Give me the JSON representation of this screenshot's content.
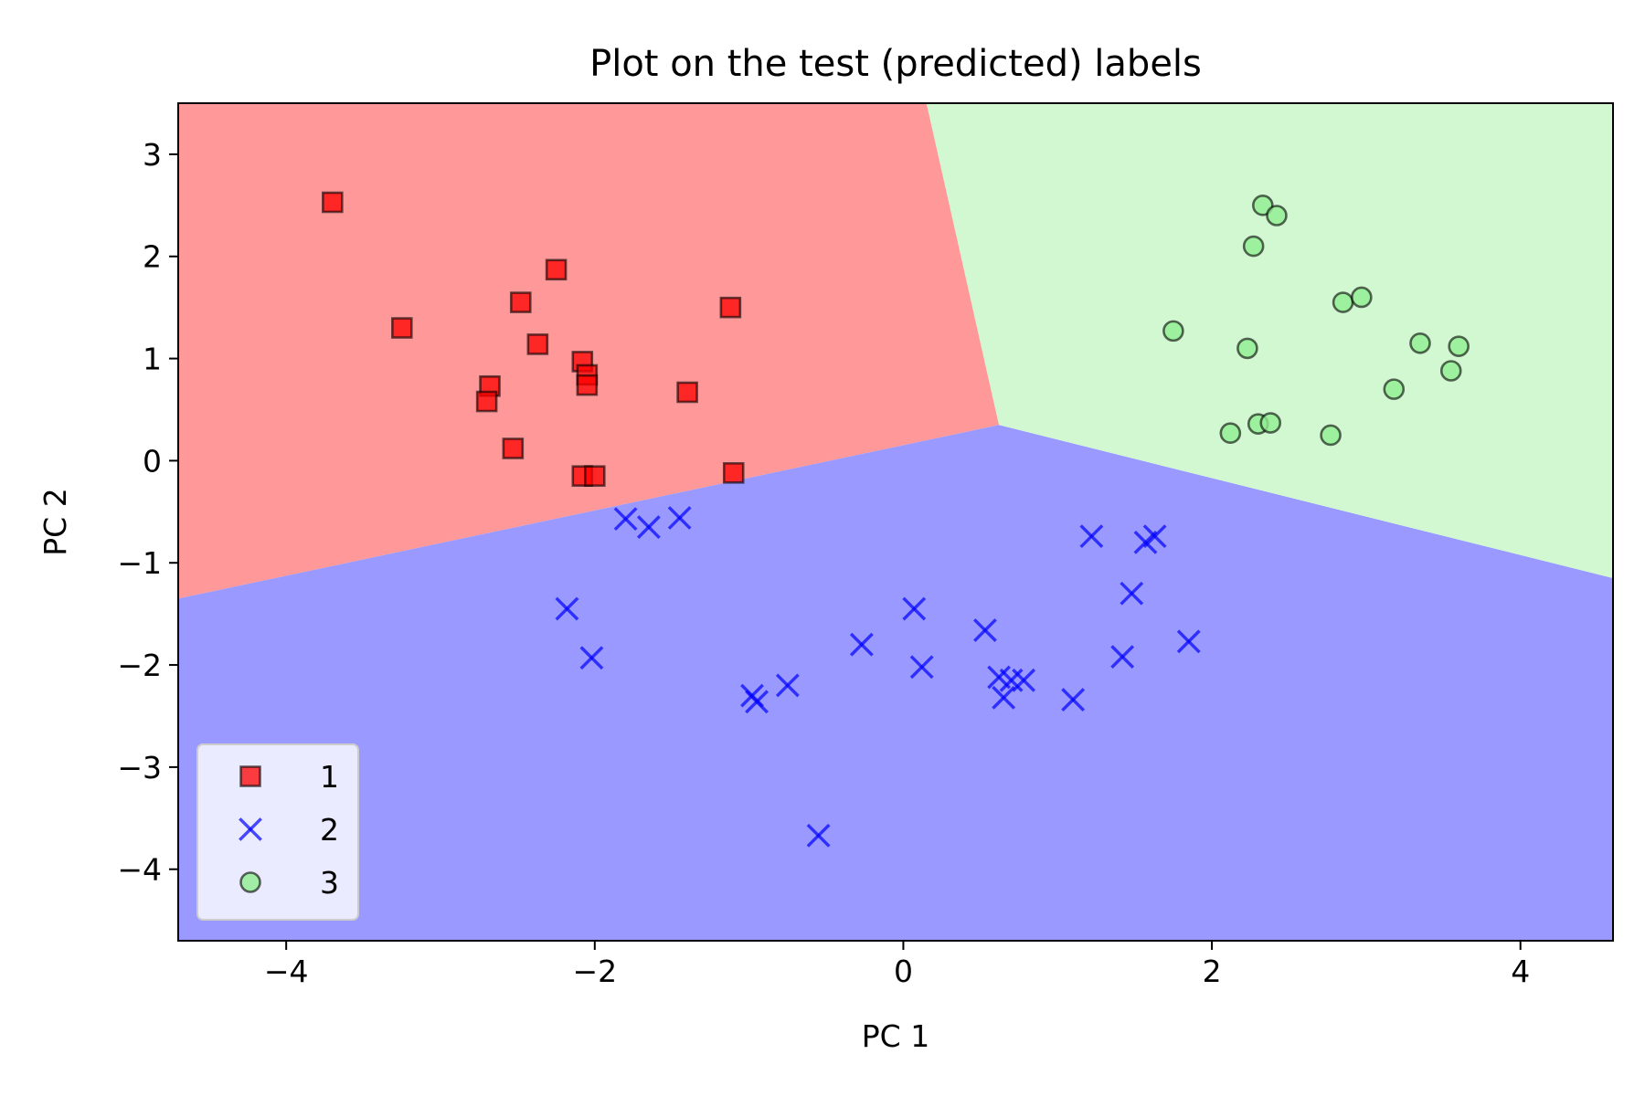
{
  "chart_data": {
    "type": "scatter",
    "title": "Plot on the test (predicted) labels",
    "xlabel": "PC 1",
    "ylabel": "PC 2",
    "xlim": [
      -4.7,
      4.6
    ],
    "ylim": [
      -4.7,
      3.5
    ],
    "xticks": [
      -4,
      -2,
      0,
      2,
      4
    ],
    "yticks": [
      -4,
      -3,
      -2,
      -1,
      0,
      1,
      2,
      3
    ],
    "xtick_labels": [
      "−4",
      "−2",
      "0",
      "2",
      "4"
    ],
    "ytick_labels": [
      "−4",
      "−3",
      "−2",
      "−1",
      "0",
      "1",
      "2",
      "3"
    ],
    "grid": false,
    "legend": {
      "position": "lower-left"
    },
    "decision_regions": [
      {
        "class": "1",
        "color": "#ff9999",
        "polygon": [
          [
            -4.7,
            3.5
          ],
          [
            0.15,
            3.5
          ],
          [
            0.62,
            0.35
          ],
          [
            -4.7,
            -1.35
          ]
        ]
      },
      {
        "class": "2",
        "color": "#9999ff",
        "polygon": [
          [
            -4.7,
            -1.35
          ],
          [
            0.62,
            0.35
          ],
          [
            4.6,
            -1.15
          ],
          [
            4.6,
            -4.7
          ],
          [
            -4.7,
            -4.7
          ]
        ]
      },
      {
        "class": "3",
        "color": "#d1f8d1",
        "polygon": [
          [
            0.15,
            3.5
          ],
          [
            4.6,
            3.5
          ],
          [
            4.6,
            -1.15
          ],
          [
            0.62,
            0.35
          ]
        ]
      }
    ],
    "series": [
      {
        "name": "1",
        "marker": "square",
        "color": "#ff0000",
        "points": [
          [
            -3.7,
            2.53
          ],
          [
            -3.25,
            1.3
          ],
          [
            -2.25,
            1.87
          ],
          [
            -2.48,
            1.55
          ],
          [
            -2.37,
            1.14
          ],
          [
            -2.08,
            0.97
          ],
          [
            -2.05,
            0.84
          ],
          [
            -2.05,
            0.74
          ],
          [
            -2.68,
            0.73
          ],
          [
            -2.7,
            0.58
          ],
          [
            -1.4,
            0.67
          ],
          [
            -1.12,
            1.5
          ],
          [
            -2.53,
            0.12
          ],
          [
            -2.08,
            -0.15
          ],
          [
            -2.0,
            -0.15
          ],
          [
            -1.1,
            -0.12
          ]
        ]
      },
      {
        "name": "2",
        "marker": "x",
        "color": "#0000ff",
        "points": [
          [
            -1.8,
            -0.57
          ],
          [
            -1.65,
            -0.65
          ],
          [
            -1.45,
            -0.56
          ],
          [
            -2.18,
            -1.45
          ],
          [
            -2.02,
            -1.93
          ],
          [
            -0.98,
            -2.3
          ],
          [
            -0.95,
            -2.36
          ],
          [
            -0.75,
            -2.2
          ],
          [
            -0.27,
            -1.8
          ],
          [
            0.07,
            -1.45
          ],
          [
            0.12,
            -2.02
          ],
          [
            0.53,
            -1.66
          ],
          [
            0.62,
            -2.12
          ],
          [
            0.65,
            -2.32
          ],
          [
            0.7,
            -2.15
          ],
          [
            0.78,
            -2.15
          ],
          [
            1.1,
            -2.34
          ],
          [
            1.22,
            -0.74
          ],
          [
            1.57,
            -0.8
          ],
          [
            1.63,
            -0.74
          ],
          [
            1.48,
            -1.3
          ],
          [
            1.42,
            -1.92
          ],
          [
            1.85,
            -1.77
          ],
          [
            -0.55,
            -3.67
          ]
        ]
      },
      {
        "name": "3",
        "marker": "circle",
        "color": "#90ee90",
        "points": [
          [
            2.33,
            2.5
          ],
          [
            2.42,
            2.4
          ],
          [
            2.27,
            2.1
          ],
          [
            1.75,
            1.27
          ],
          [
            2.23,
            1.1
          ],
          [
            2.85,
            1.55
          ],
          [
            2.97,
            1.6
          ],
          [
            3.35,
            1.15
          ],
          [
            3.6,
            1.12
          ],
          [
            3.55,
            0.88
          ],
          [
            3.18,
            0.7
          ],
          [
            2.12,
            0.27
          ],
          [
            2.3,
            0.36
          ],
          [
            2.38,
            0.37
          ],
          [
            2.77,
            0.25
          ]
        ]
      }
    ]
  }
}
